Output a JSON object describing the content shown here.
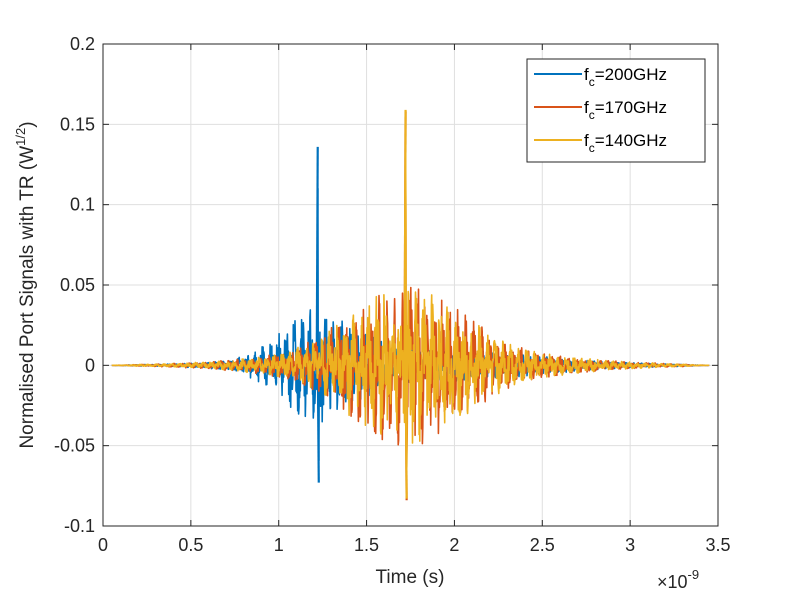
{
  "chart_data": {
    "type": "line",
    "title": "",
    "xlabel": "Time (s)",
    "ylabel_main": "Normalised Port Signals with TR (W",
    "ylabel_sup": "1/2",
    "ylabel_end": ")",
    "x_exponent_base": "×10",
    "x_exponent_power": "-9",
    "xlim": [
      0,
      3.5
    ],
    "ylim": [
      -0.1,
      0.2
    ],
    "grid": true,
    "legend_position": "top-right",
    "x_ticks": [
      0,
      0.5,
      1,
      1.5,
      2,
      2.5,
      3,
      3.5
    ],
    "x_tick_labels": [
      "0",
      "0.5",
      "1",
      "1.5",
      "2",
      "2.5",
      "3",
      "3.5"
    ],
    "y_ticks": [
      -0.1,
      -0.05,
      0,
      0.05,
      0.1,
      0.15,
      0.2
    ],
    "y_tick_labels": [
      "-0.1",
      "-0.05",
      "0",
      "0.05",
      "0.1",
      "0.15",
      "0.2"
    ],
    "series": [
      {
        "name_main": "f",
        "name_sub": "c",
        "name_rest": "=200GHz",
        "color": "#0072BD",
        "center": 1.22,
        "spread": 0.28,
        "envelope_amp": 0.024,
        "peaks": [
          {
            "x": 1.222,
            "value": 0.136
          },
          {
            "x": 1.228,
            "value": -0.073
          }
        ]
      },
      {
        "name_main": "f",
        "name_sub": "c",
        "name_rest": "=170GHz",
        "color": "#D95319",
        "center": 1.72,
        "spread": 0.42,
        "envelope_amp": 0.031,
        "peaks": [
          {
            "x": 1.722,
            "value": 0.158
          },
          {
            "x": 1.728,
            "value": -0.084
          }
        ]
      },
      {
        "name_main": "f",
        "name_sub": "c",
        "name_rest": "=140GHz",
        "color": "#EDB120",
        "center": 1.72,
        "spread": 0.42,
        "envelope_amp": 0.03,
        "peaks": [
          {
            "x": 1.722,
            "value": 0.159
          },
          {
            "x": 1.728,
            "value": -0.083
          }
        ]
      }
    ]
  }
}
